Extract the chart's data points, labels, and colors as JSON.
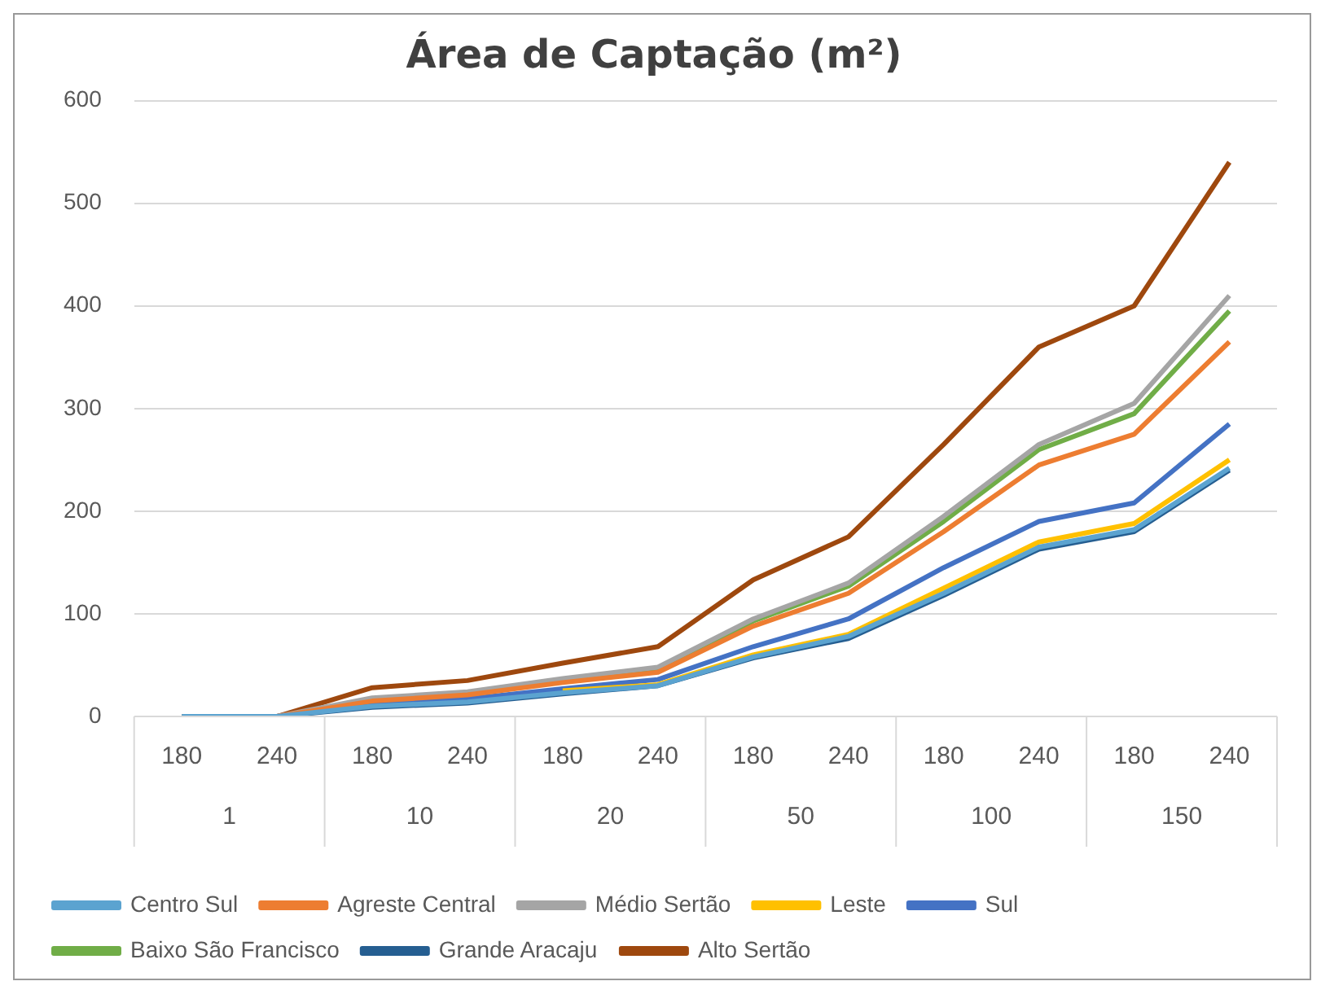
{
  "chart_data": {
    "type": "line",
    "title": "Área de Captação (m²)",
    "categories": [
      "180",
      "240",
      "180",
      "240",
      "180",
      "240",
      "180",
      "240",
      "180",
      "240",
      "180",
      "240"
    ],
    "annotations": [
      "1",
      "10",
      "20",
      "50",
      "100",
      "150"
    ],
    "series": [
      {
        "name": "Centro Sul",
        "color": "#5ba3d0",
        "values": [
          0,
          0,
          10,
          14,
          23,
          30,
          58,
          78,
          120,
          165,
          182,
          242
        ]
      },
      {
        "name": "Agreste Central",
        "color": "#ed7d31",
        "values": [
          0,
          0,
          15,
          21,
          33,
          43,
          88,
          120,
          180,
          245,
          275,
          365
        ]
      },
      {
        "name": "Médio Sertão",
        "color": "#a5a5a5",
        "values": [
          0,
          0,
          18,
          24,
          37,
          48,
          95,
          130,
          195,
          265,
          305,
          410
        ]
      },
      {
        "name": "Leste",
        "color": "#ffc000",
        "values": [
          null,
          null,
          null,
          null,
          25,
          31,
          60,
          80,
          125,
          170,
          188,
          250
        ]
      },
      {
        "name": "Sul",
        "color": "#4472c4",
        "values": [
          0,
          0,
          12,
          17,
          27,
          36,
          68,
          95,
          145,
          190,
          208,
          285
        ]
      },
      {
        "name": "Baixo São Francisco",
        "color": "#70ad47",
        "values": [
          null,
          null,
          null,
          null,
          36,
          46,
          93,
          127,
          190,
          260,
          295,
          395
        ]
      },
      {
        "name": "Grande Aracaju",
        "color": "#255e91",
        "values": [
          0,
          0,
          9,
          13,
          22,
          30,
          57,
          76,
          118,
          163,
          180,
          240
        ]
      },
      {
        "name": "Alto Sertão",
        "color": "#9e480e",
        "values": [
          0,
          0,
          28,
          35,
          52,
          68,
          133,
          175,
          265,
          360,
          400,
          540
        ]
      }
    ],
    "ylim": [
      0,
      600
    ],
    "yticks": [
      0,
      100,
      200,
      300,
      400,
      500,
      600
    ],
    "grid": "y",
    "legend": "bottom",
    "marker": "none",
    "line_style": "solid"
  }
}
